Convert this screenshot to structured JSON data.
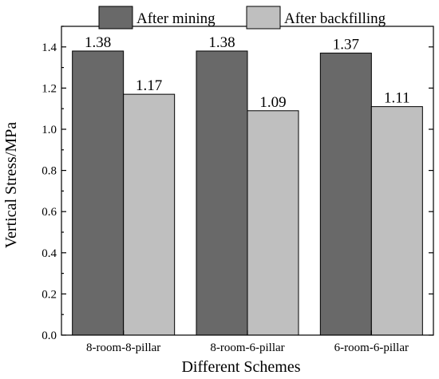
{
  "chart_data": {
    "type": "bar",
    "title": "",
    "xlabel": "Different Schemes",
    "ylabel": "Vertical Stress/MPa",
    "ylim": [
      0,
      1.5
    ],
    "yticks": [
      "0.0",
      "0.2",
      "0.4",
      "0.6",
      "0.8",
      "1.0",
      "1.2",
      "1.4"
    ],
    "grid": false,
    "legend_position": "top",
    "categories": [
      "8-room-8-pillar",
      "8-room-6-pillar",
      "6-room-6-pillar"
    ],
    "series": [
      {
        "name": "After mining",
        "color": "#696969",
        "values": [
          1.38,
          1.38,
          1.37
        ],
        "labels": [
          "1.38",
          "1.38",
          "1.37"
        ]
      },
      {
        "name": "After backfilling",
        "color": "#bfbfbf",
        "values": [
          1.17,
          1.09,
          1.11
        ],
        "labels": [
          "1.17",
          "1.09",
          "1.11"
        ]
      }
    ]
  }
}
